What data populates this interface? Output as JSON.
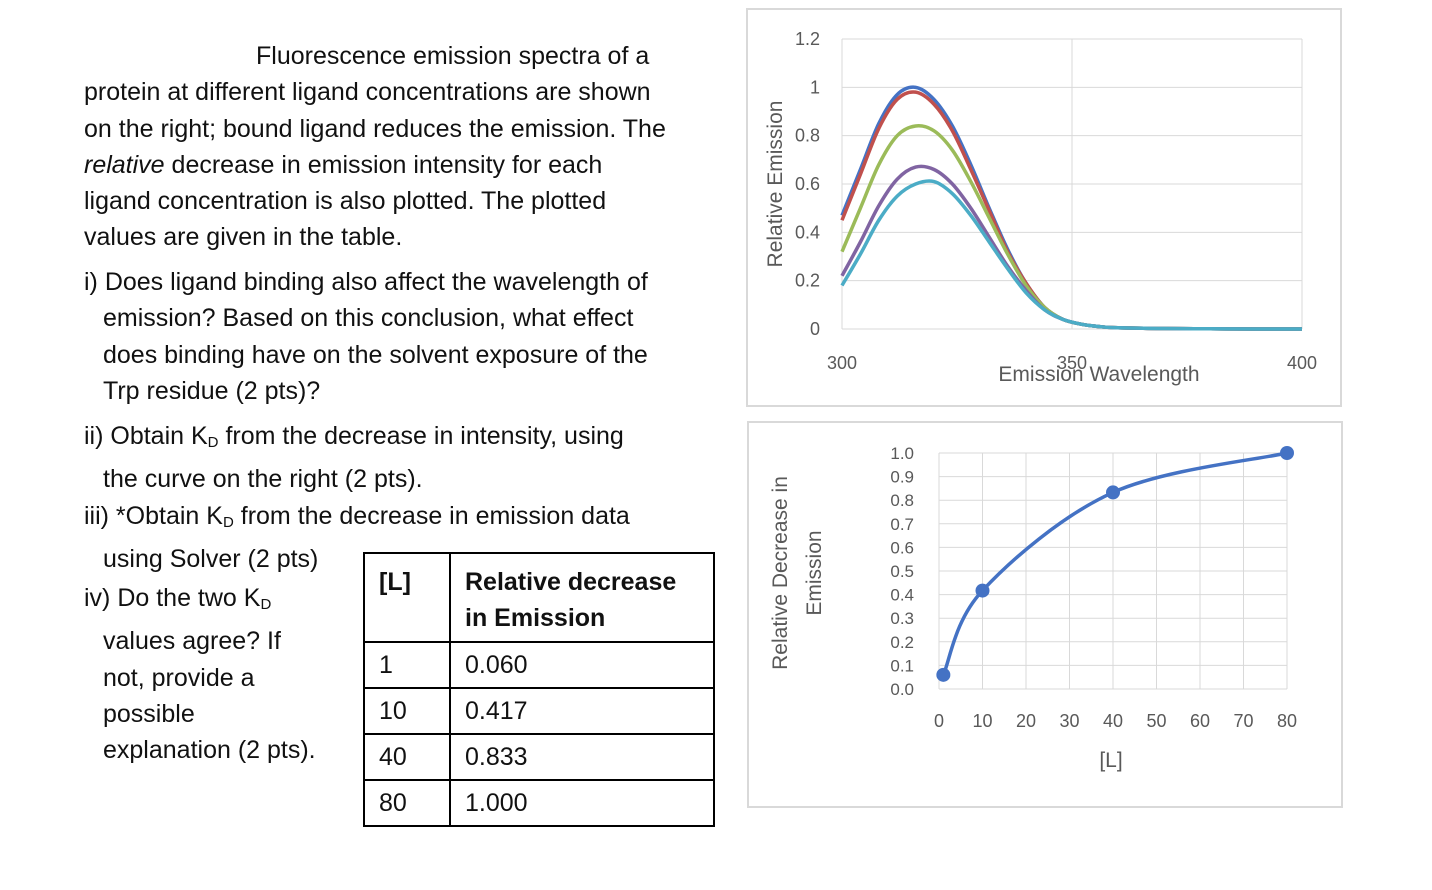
{
  "intro": {
    "line1": "Fluorescence emission spectra of a",
    "line2": "protein at different ligand concentrations are shown",
    "line3": "on the right; bound ligand reduces the emission. The",
    "line4_em": "relative",
    "line4_rest": " decrease in emission intensity for each",
    "line5": "ligand concentration is also plotted. The plotted",
    "line6": "values are given in the table."
  },
  "questions": {
    "q1": [
      "i) Does ligand binding also affect the wavelength of",
      "emission?  Based on this conclusion, what effect",
      "does binding have on the solvent exposure of the",
      "Trp residue (2 pts)?"
    ],
    "q2_a": "ii) Obtain K",
    "q2_b": " from the decrease in intensity, using",
    "q2_c": "the curve on the right  (2 pts).",
    "q3_a": "iii) *Obtain K",
    "q3_b": " from the decrease in emission data",
    "q3_c": "using Solver (2 pts)",
    "q4_a": "iv) Do the two K",
    "q4_lines": [
      "values agree?  If",
      "not, provide a",
      "possible",
      "explanation (2 pts)."
    ],
    "sub_d": "D"
  },
  "table": {
    "col1": "[L]",
    "col2_line1": "Relative decrease",
    "col2_line2": "in Emission",
    "rows": [
      {
        "l": "1",
        "v": "0.060"
      },
      {
        "l": "10",
        "v": "0.417"
      },
      {
        "l": "40",
        "v": "0.833"
      },
      {
        "l": "80",
        "v": "1.000"
      }
    ]
  },
  "chart_data": [
    {
      "type": "line",
      "title": "",
      "xlabel": "Emission Wavelength",
      "ylabel": "Relative Emission",
      "xlim": [
        300,
        400
      ],
      "ylim": [
        0,
        1.2
      ],
      "xticks": [
        "300",
        "350",
        "400"
      ],
      "yticks": [
        "0",
        "0.2",
        "0.4",
        "0.6",
        "0.8",
        "1",
        "1.2"
      ],
      "grid": true,
      "x": [
        300,
        304,
        308,
        312,
        316,
        320,
        324,
        328,
        332,
        336,
        340,
        344,
        348,
        352,
        356,
        360,
        370,
        380,
        390,
        400
      ],
      "series": [
        {
          "color": "#4472C4",
          "values": [
            0.47,
            0.66,
            0.85,
            0.97,
            1.0,
            0.95,
            0.84,
            0.68,
            0.5,
            0.33,
            0.19,
            0.09,
            0.04,
            0.02,
            0.01,
            0.005,
            0.002,
            0.001,
            0,
            0
          ]
        },
        {
          "color": "#C0504D",
          "values": [
            0.45,
            0.64,
            0.83,
            0.95,
            0.98,
            0.93,
            0.82,
            0.66,
            0.49,
            0.32,
            0.19,
            0.09,
            0.04,
            0.02,
            0.01,
            0.005,
            0.002,
            0.001,
            0,
            0
          ]
        },
        {
          "color": "#9BBB59",
          "values": [
            0.32,
            0.5,
            0.68,
            0.8,
            0.84,
            0.82,
            0.74,
            0.61,
            0.46,
            0.31,
            0.18,
            0.09,
            0.04,
            0.02,
            0.01,
            0.005,
            0.002,
            0.001,
            0,
            0
          ]
        },
        {
          "color": "#8064A2",
          "values": [
            0.22,
            0.36,
            0.51,
            0.62,
            0.67,
            0.66,
            0.6,
            0.5,
            0.38,
            0.26,
            0.16,
            0.08,
            0.04,
            0.02,
            0.01,
            0.005,
            0.002,
            0.001,
            0,
            0
          ]
        },
        {
          "color": "#4BACC6",
          "values": [
            0.18,
            0.31,
            0.45,
            0.55,
            0.6,
            0.61,
            0.56,
            0.47,
            0.36,
            0.25,
            0.15,
            0.08,
            0.04,
            0.02,
            0.01,
            0.005,
            0.002,
            0.001,
            0,
            0
          ]
        }
      ]
    },
    {
      "type": "scatter",
      "title": "",
      "xlabel": "[L]",
      "ylabel_line1": "Relative Decrease in",
      "ylabel_line2": "Emission",
      "xlim": [
        0,
        80
      ],
      "ylim": [
        0,
        1.0
      ],
      "xticks": [
        "0",
        "10",
        "20",
        "30",
        "40",
        "50",
        "60",
        "70",
        "80"
      ],
      "yticks": [
        "0.0",
        "0.1",
        "0.2",
        "0.3",
        "0.4",
        "0.5",
        "0.6",
        "0.7",
        "0.8",
        "0.9",
        "1.0"
      ],
      "grid": true,
      "smooth_line": true,
      "color": "#4472C4",
      "x": [
        1,
        10,
        40,
        80
      ],
      "y": [
        0.06,
        0.417,
        0.833,
        1.0
      ]
    }
  ]
}
